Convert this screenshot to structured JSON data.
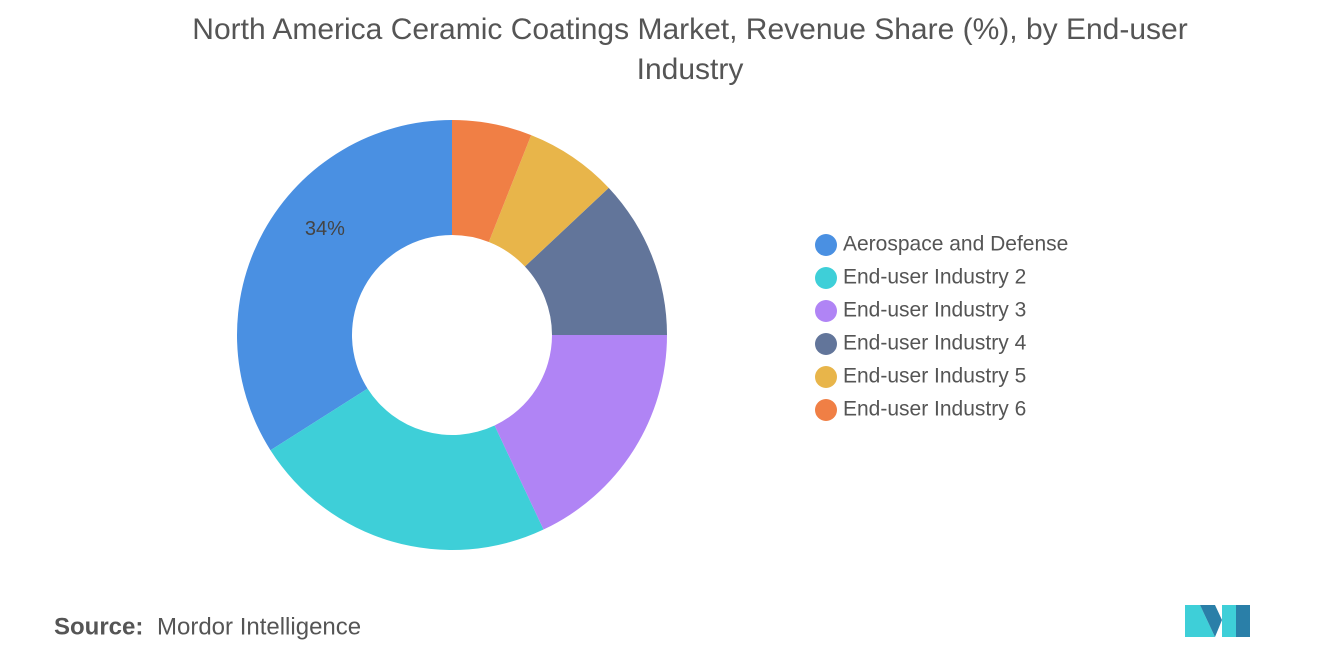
{
  "chart_data": {
    "type": "donut",
    "title": "North America Ceramic Coatings Market, Revenue Share (%), by End-user Industry",
    "series": [
      {
        "name": "Aerospace and Defense",
        "color": "#4a90e2",
        "value": 34,
        "value_label": "34%"
      },
      {
        "name": "End-user Industry 2",
        "color": "#3ecfd8",
        "value": 23
      },
      {
        "name": "End-user Industry 3",
        "color": "#b084f5",
        "value": 18
      },
      {
        "name": "End-user Industry 4",
        "color": "#62759a",
        "value": 12
      },
      {
        "name": "End-user Industry 5",
        "color": "#e8b54a",
        "value": 7
      },
      {
        "name": "End-user Industry 6",
        "color": "#f07f45",
        "value": 6
      }
    ],
    "legend": "right"
  },
  "source": {
    "label": "Source:",
    "name": "Mordor Intelligence"
  }
}
